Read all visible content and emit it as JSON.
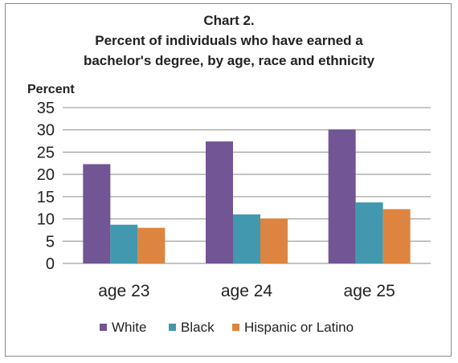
{
  "chart_data": {
    "type": "bar",
    "title": [
      "Chart 2.",
      "Percent of individuals who have earned a",
      "bachelor's degree, by age, race and ethnicity"
    ],
    "ylabel": "Percent",
    "xlabel": "",
    "categories": [
      "age 23",
      "age 24",
      "age 25"
    ],
    "ylim": [
      0,
      35
    ],
    "yticks": [
      0,
      5,
      10,
      15,
      20,
      25,
      30,
      35
    ],
    "grid": true,
    "legend_position": "bottom",
    "series": [
      {
        "name": "White",
        "color": "#725594",
        "values": [
          22.3,
          27.4,
          30.1
        ]
      },
      {
        "name": "Black",
        "color": "#4298ae",
        "values": [
          8.7,
          11.0,
          13.7
        ]
      },
      {
        "name": "Hispanic or Latino",
        "color": "#dd8540",
        "values": [
          8.0,
          10.1,
          12.2
        ]
      }
    ]
  }
}
